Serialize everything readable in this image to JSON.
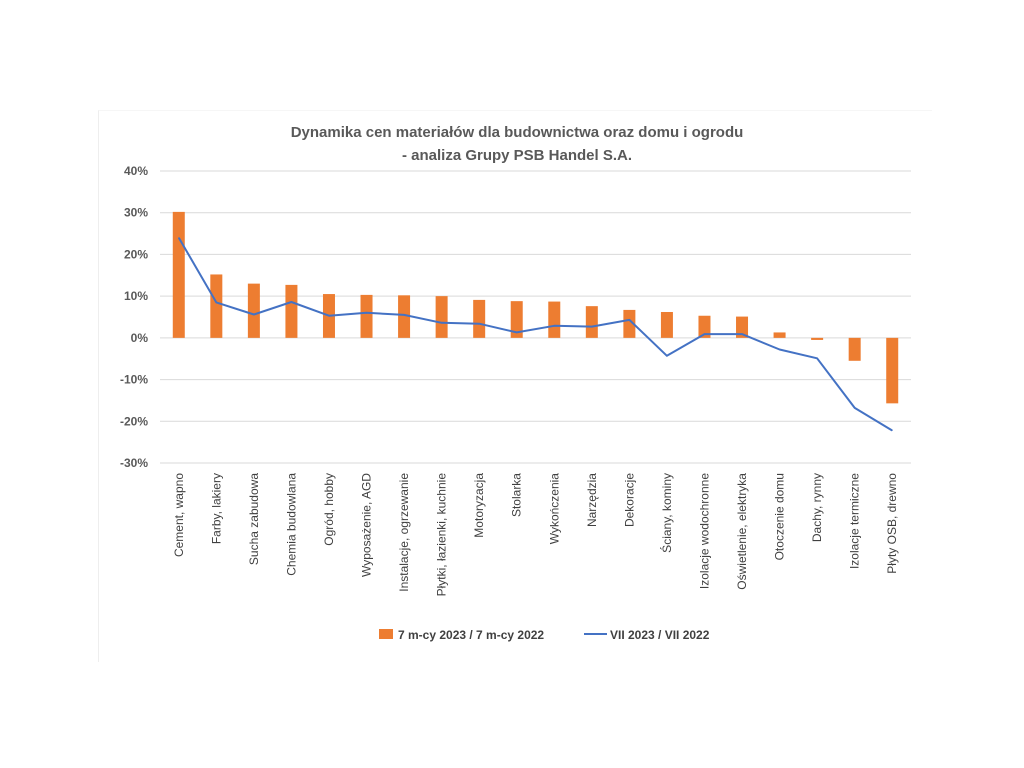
{
  "chart_data": {
    "type": "bar",
    "title": "Dynamika cen materiałów dla budownictwa oraz domu i ogrodu",
    "subtitle": "- analiza Grupy PSB Handel S.A.",
    "categories": [
      "Cement, wapno",
      "Farby, lakiery",
      "Sucha zabudowa",
      "Chemia budowlana",
      "Ogród, hobby",
      "Wyposażenie, AGD",
      "Instalacje, ogrzewanie",
      "Płytki, łazienki, kuchnie",
      "Motoryzacja",
      "Stolarka",
      "Wykończenia",
      "Narzędzia",
      "Dekoracje",
      "Ściany, kominy",
      "Izolacje wodochronne",
      "Oświetlenie, elektryka",
      "Otoczenie domu",
      "Dachy, rynny",
      "Izolacje termiczne",
      "Płyty OSB, drewno"
    ],
    "series": [
      {
        "name": "7 m-cy 2023 / 7 m-cy 2022",
        "type": "bar",
        "color": "#ED7D31",
        "values": [
          30.2,
          15.2,
          13.0,
          12.7,
          10.5,
          10.3,
          10.2,
          10.0,
          9.1,
          8.8,
          8.7,
          7.6,
          6.7,
          6.2,
          5.3,
          5.1,
          1.3,
          -0.5,
          -5.5,
          -15.7
        ]
      },
      {
        "name": "VII 2023 / VII 2022",
        "type": "line",
        "color": "#4472C4",
        "values": [
          24.0,
          8.5,
          5.6,
          8.6,
          5.3,
          6.0,
          5.5,
          3.6,
          3.4,
          1.3,
          2.9,
          2.7,
          4.3,
          -4.3,
          0.9,
          0.9,
          -2.8,
          -4.9,
          -16.8,
          -22.2
        ]
      }
    ],
    "yticks": [
      "40%",
      "30%",
      "20%",
      "10%",
      "0%",
      "-10%",
      "-20%",
      "-30%"
    ],
    "ylim": [
      -30,
      40
    ],
    "grid": true,
    "legend_position": "bottom"
  }
}
